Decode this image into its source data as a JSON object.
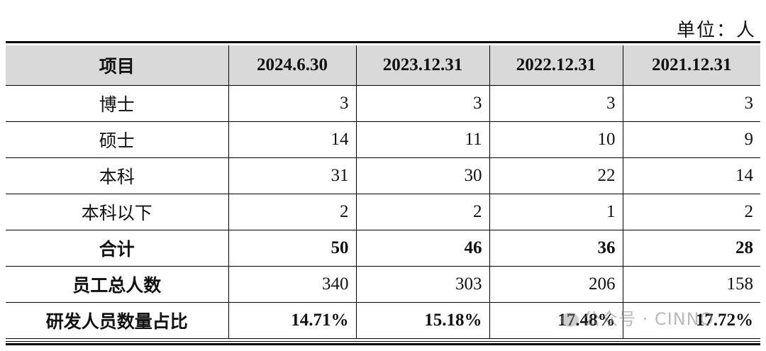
{
  "unit_label": "单位：人",
  "table": {
    "headers": [
      "项目",
      "2024.6.30",
      "2023.12.31",
      "2022.12.31",
      "2021.12.31"
    ],
    "rows": [
      {
        "label": "博士",
        "values": [
          "3",
          "3",
          "3",
          "3"
        ],
        "bold": false
      },
      {
        "label": "硕士",
        "values": [
          "14",
          "11",
          "10",
          "9"
        ],
        "bold": false
      },
      {
        "label": "本科",
        "values": [
          "31",
          "30",
          "22",
          "14"
        ],
        "bold": false
      },
      {
        "label": "本科以下",
        "values": [
          "2",
          "2",
          "1",
          "2"
        ],
        "bold": false
      },
      {
        "label": "合计",
        "values": [
          "50",
          "46",
          "36",
          "28"
        ],
        "bold": true
      },
      {
        "label": "员工总人数",
        "values": [
          "340",
          "303",
          "206",
          "158"
        ],
        "bold": false,
        "bold_label": true
      },
      {
        "label": "研发人员数量占比",
        "values": [
          "14.71%",
          "15.18%",
          "17.48%",
          "17.72%"
        ],
        "bold": true
      }
    ]
  },
  "watermark": {
    "text": "公众号 · CINNO",
    "logo_icon": "wechat-logo-icon"
  }
}
